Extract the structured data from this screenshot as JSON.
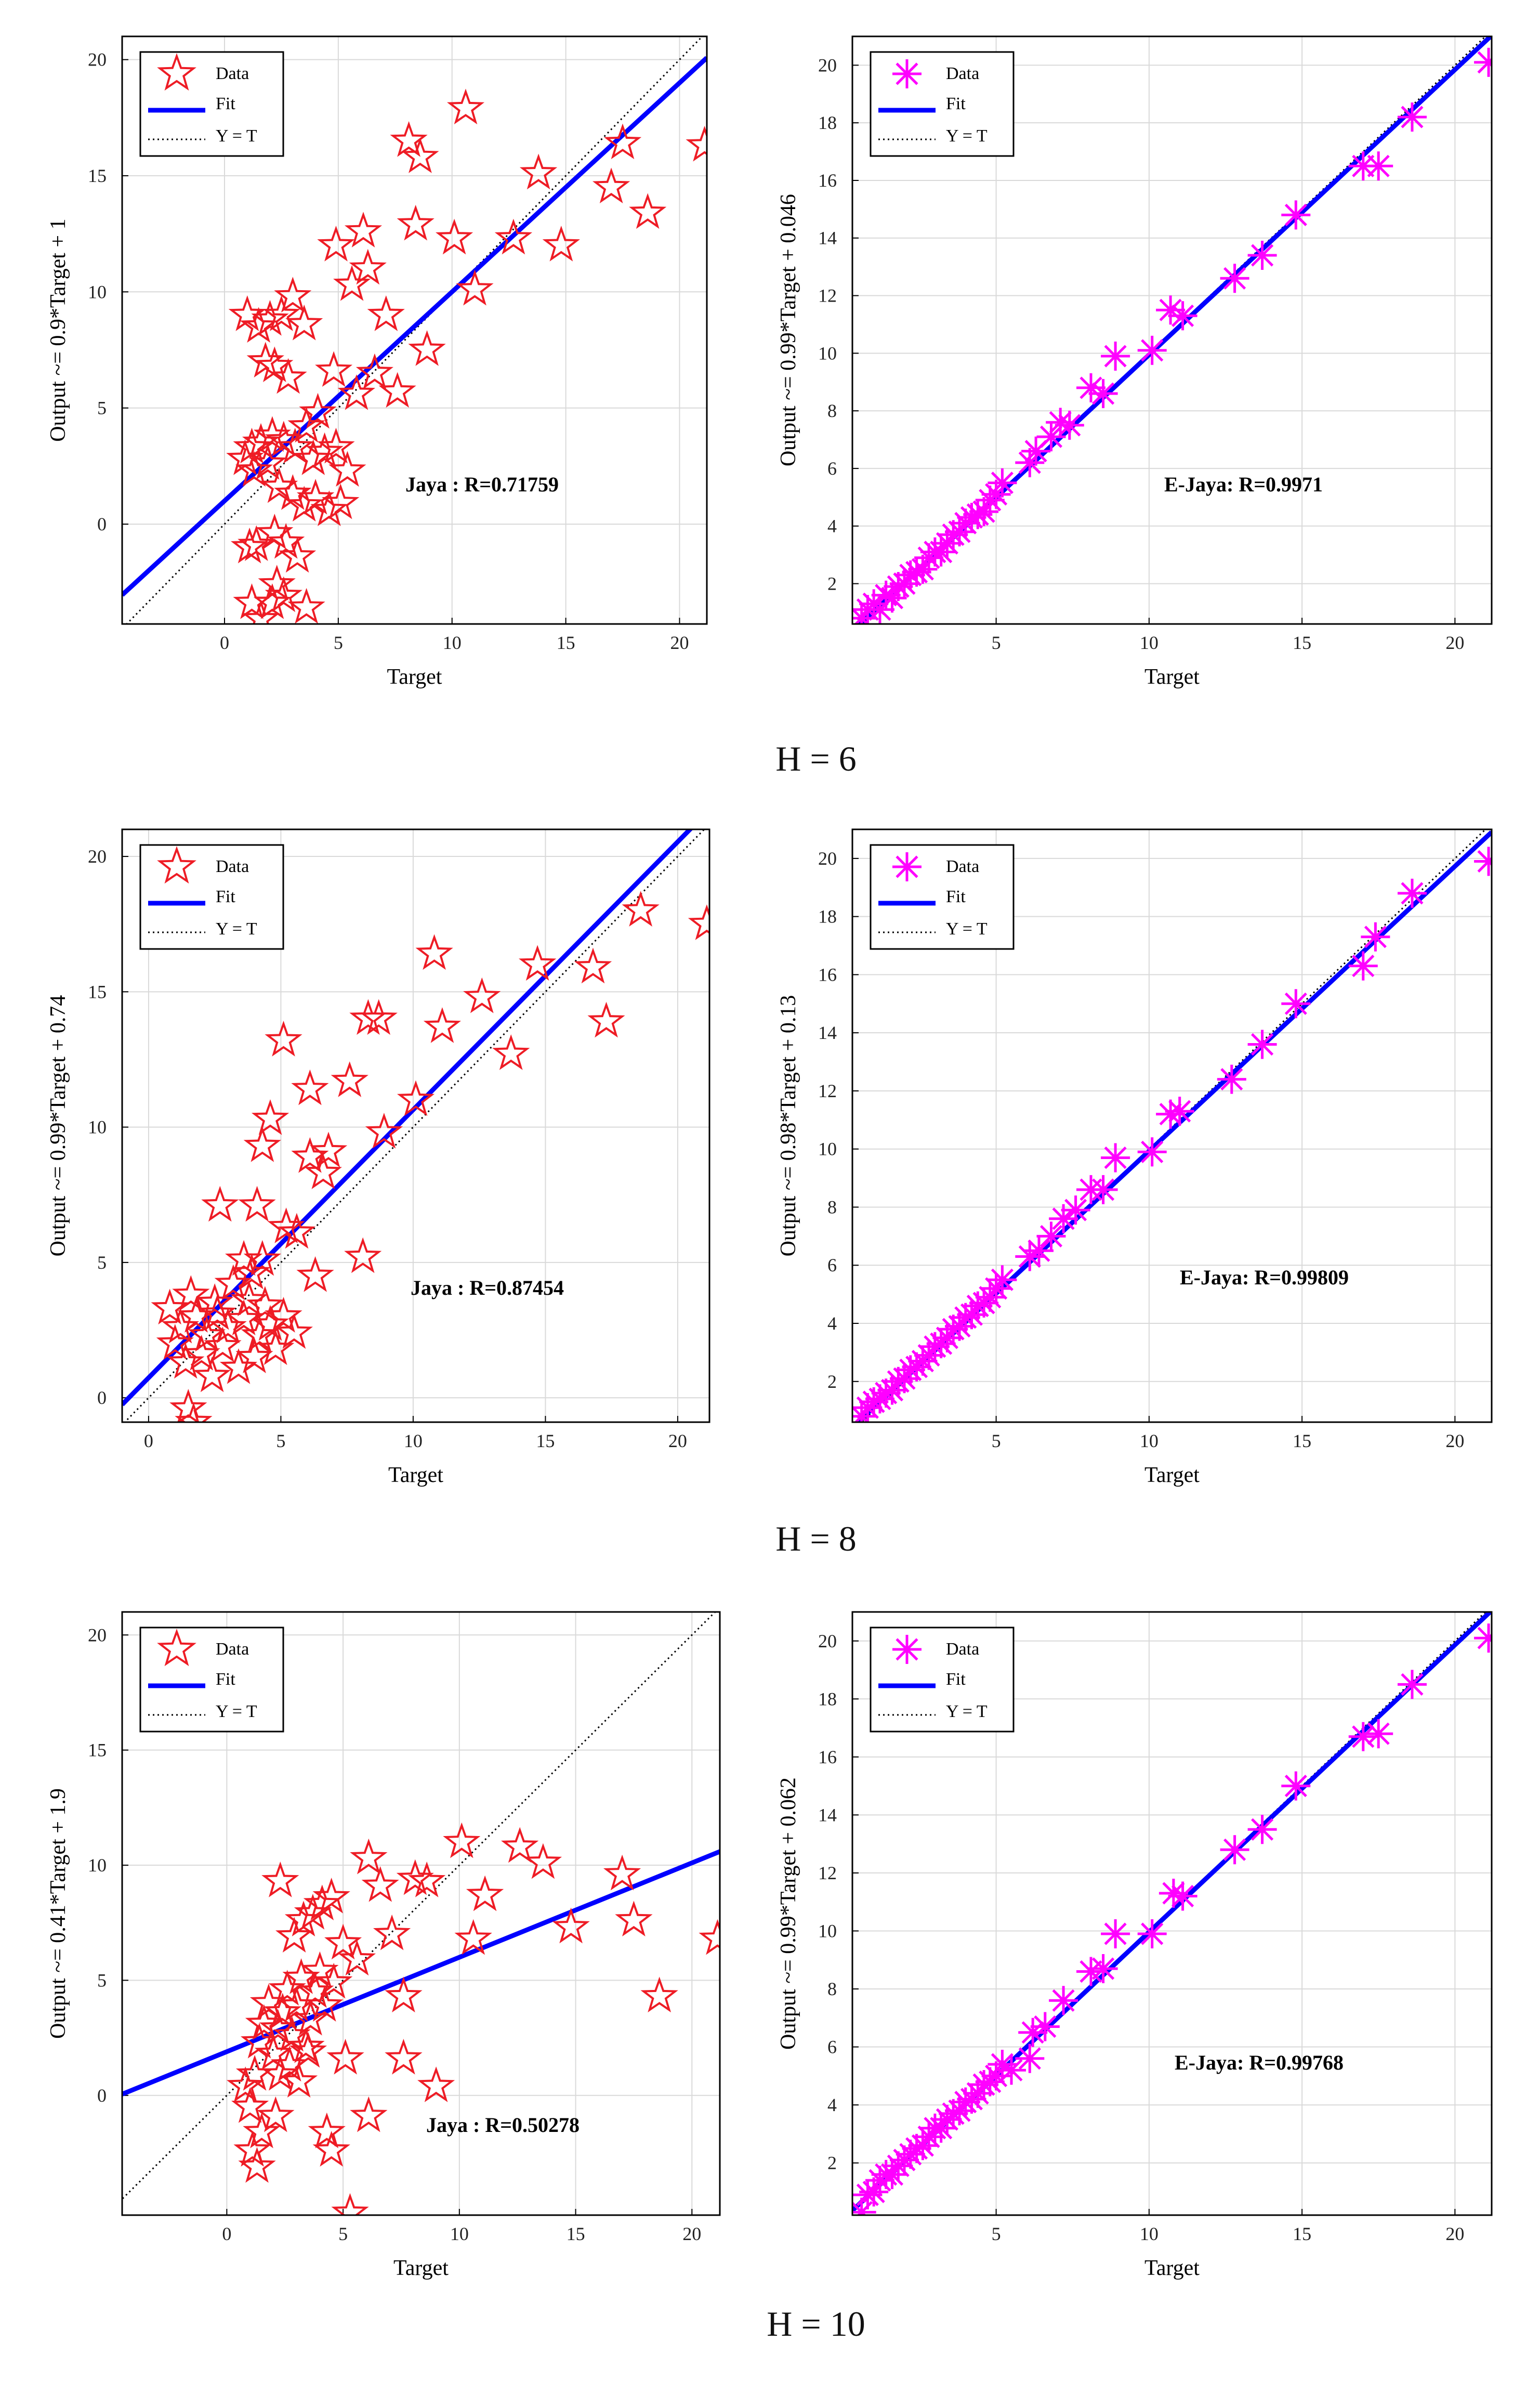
{
  "colors": {
    "jaya": "#ee1c25",
    "ejaya": "#ff00ff",
    "fit": "#0000ff",
    "ref": "#000000",
    "grid": "#d9d9d9"
  },
  "sections": [
    {
      "label": "H = 6"
    },
    {
      "label": "H = 8"
    },
    {
      "label": "H = 10"
    }
  ],
  "legend": {
    "data": "Data",
    "fit": "Fit",
    "ref": "Y = T"
  },
  "chart_data": [
    {
      "type": "scatter",
      "marker": "star",
      "color": "#ee1c25",
      "xlabel": "Target",
      "ylabel": "Output ~= 0.9*Target + 1",
      "annotation": "Jaya : R=0.71759",
      "xlim": [
        -4.5,
        21.2
      ],
      "ylim": [
        -4.3,
        21
      ],
      "xticks": [
        0,
        5,
        10,
        15,
        20
      ],
      "yticks": [
        0,
        5,
        10,
        15,
        20
      ],
      "fit": {
        "slope": 0.9,
        "intercept": 1
      },
      "points": [
        [
          1.0,
          9.0
        ],
        [
          1.5,
          8.5
        ],
        [
          2.0,
          8.8
        ],
        [
          2.5,
          9.0
        ],
        [
          3.0,
          9.8
        ],
        [
          3.5,
          8.6
        ],
        [
          2.2,
          6.8
        ],
        [
          2.8,
          6.3
        ],
        [
          1.8,
          7.0
        ],
        [
          1.2,
          3.3
        ],
        [
          1.6,
          3.5
        ],
        [
          2.1,
          3.8
        ],
        [
          2.6,
          3.6
        ],
        [
          3.1,
          3.3
        ],
        [
          3.6,
          4.2
        ],
        [
          4.1,
          4.8
        ],
        [
          0.9,
          2.8
        ],
        [
          1.3,
          2.3
        ],
        [
          1.9,
          2.6
        ],
        [
          2.4,
          1.6
        ],
        [
          3.0,
          1.3
        ],
        [
          3.5,
          0.8
        ],
        [
          4.0,
          1.1
        ],
        [
          4.6,
          0.6
        ],
        [
          5.1,
          0.9
        ],
        [
          1.1,
          -1.0
        ],
        [
          1.4,
          -0.9
        ],
        [
          2.2,
          -0.4
        ],
        [
          2.7,
          -0.8
        ],
        [
          3.2,
          -1.4
        ],
        [
          1.2,
          -3.4
        ],
        [
          1.6,
          -4.1
        ],
        [
          2.1,
          -3.4
        ],
        [
          2.6,
          -3.1
        ],
        [
          3.6,
          -3.6
        ],
        [
          2.3,
          -2.6
        ],
        [
          3.9,
          2.8
        ],
        [
          4.4,
          3.1
        ],
        [
          4.9,
          3.3
        ],
        [
          5.4,
          2.3
        ],
        [
          4.8,
          6.6
        ],
        [
          5.8,
          5.6
        ],
        [
          4.9,
          12.0
        ],
        [
          6.1,
          12.6
        ],
        [
          5.6,
          10.3
        ],
        [
          6.3,
          11.0
        ],
        [
          7.1,
          9.0
        ],
        [
          6.6,
          6.5
        ],
        [
          7.6,
          5.7
        ],
        [
          8.1,
          16.5
        ],
        [
          8.6,
          15.8
        ],
        [
          8.4,
          12.9
        ],
        [
          10.1,
          12.3
        ],
        [
          10.6,
          17.9
        ],
        [
          11.0,
          10.1
        ],
        [
          8.9,
          7.5
        ],
        [
          12.7,
          12.3
        ],
        [
          13.8,
          15.1
        ],
        [
          14.8,
          12.0
        ],
        [
          17.0,
          14.5
        ],
        [
          17.5,
          16.4
        ],
        [
          18.6,
          13.4
        ],
        [
          21.1,
          16.3
        ]
      ]
    },
    {
      "type": "scatter",
      "marker": "asterisk",
      "color": "#ff00ff",
      "xlabel": "Target",
      "ylabel": "Output ~= 0.99*Target + 0.046",
      "annotation": "E-Jaya: R=0.9971",
      "xlim": [
        0.3,
        21.2
      ],
      "ylim": [
        0.6,
        21
      ],
      "xticks": [
        5,
        10,
        15,
        20
      ],
      "yticks": [
        2,
        4,
        6,
        8,
        10,
        12,
        14,
        16,
        18,
        20
      ],
      "fit": {
        "slope": 0.99,
        "intercept": 0.046
      },
      "points": [
        [
          0.6,
          0.8
        ],
        [
          0.8,
          1.1
        ],
        [
          1.0,
          1.3
        ],
        [
          1.2,
          1.1
        ],
        [
          1.4,
          1.6
        ],
        [
          1.6,
          1.5
        ],
        [
          1.8,
          1.9
        ],
        [
          2.0,
          2.0
        ],
        [
          2.2,
          2.3
        ],
        [
          2.4,
          2.4
        ],
        [
          2.6,
          2.5
        ],
        [
          2.8,
          2.9
        ],
        [
          3.0,
          3.1
        ],
        [
          3.2,
          3.1
        ],
        [
          3.4,
          3.4
        ],
        [
          3.6,
          3.7
        ],
        [
          3.8,
          3.8
        ],
        [
          4.0,
          4.1
        ],
        [
          4.2,
          4.3
        ],
        [
          4.4,
          4.4
        ],
        [
          4.6,
          4.5
        ],
        [
          4.8,
          4.9
        ],
        [
          5.0,
          5.1
        ],
        [
          5.2,
          5.5
        ],
        [
          6.1,
          6.2
        ],
        [
          6.3,
          6.6
        ],
        [
          6.8,
          7.1
        ],
        [
          7.1,
          7.6
        ],
        [
          7.4,
          7.5
        ],
        [
          8.1,
          8.8
        ],
        [
          8.5,
          8.6
        ],
        [
          8.9,
          9.9
        ],
        [
          10.1,
          10.1
        ],
        [
          10.7,
          11.5
        ],
        [
          11.1,
          11.3
        ],
        [
          12.8,
          12.6
        ],
        [
          13.7,
          13.4
        ],
        [
          14.8,
          14.8
        ],
        [
          17.0,
          16.5
        ],
        [
          17.5,
          16.5
        ],
        [
          18.6,
          18.2
        ],
        [
          21.1,
          20.1
        ]
      ]
    },
    {
      "type": "scatter",
      "marker": "star",
      "color": "#ee1c25",
      "xlabel": "Target",
      "ylabel": "Output ~= 0.99*Target + 0.74",
      "annotation": "Jaya : R=0.87454",
      "xlim": [
        -1,
        21.2
      ],
      "ylim": [
        -0.9,
        21
      ],
      "xticks": [
        0,
        5,
        10,
        15,
        20
      ],
      "yticks": [
        0,
        5,
        10,
        15,
        20
      ],
      "fit": {
        "slope": 0.99,
        "intercept": 0.74
      },
      "points": [
        [
          0.8,
          3.3
        ],
        [
          1.0,
          2.0
        ],
        [
          1.2,
          2.6
        ],
        [
          1.4,
          1.3
        ],
        [
          1.6,
          3.8
        ],
        [
          1.8,
          3.0
        ],
        [
          2.0,
          1.6
        ],
        [
          2.2,
          2.3
        ],
        [
          2.4,
          0.8
        ],
        [
          2.6,
          3.1
        ],
        [
          2.8,
          1.9
        ],
        [
          3.0,
          2.6
        ],
        [
          3.2,
          4.2
        ],
        [
          3.4,
          1.1
        ],
        [
          3.6,
          2.9
        ],
        [
          3.8,
          3.6
        ],
        [
          4.0,
          1.5
        ],
        [
          4.2,
          2.3
        ],
        [
          4.4,
          3.4
        ],
        [
          4.6,
          2.7
        ],
        [
          1.5,
          -0.4
        ],
        [
          1.7,
          -0.9
        ],
        [
          2.5,
          3.5
        ],
        [
          3.9,
          4.6
        ],
        [
          4.3,
          5.1
        ],
        [
          5.1,
          3.0
        ],
        [
          5.5,
          2.4
        ],
        [
          4.8,
          1.8
        ],
        [
          2.7,
          7.1
        ],
        [
          3.6,
          5.1
        ],
        [
          4.1,
          7.1
        ],
        [
          4.3,
          9.3
        ],
        [
          4.6,
          10.3
        ],
        [
          5.2,
          6.3
        ],
        [
          5.6,
          6.1
        ],
        [
          5.1,
          13.2
        ],
        [
          6.1,
          11.4
        ],
        [
          6.1,
          8.9
        ],
        [
          6.6,
          8.3
        ],
        [
          6.8,
          9.1
        ],
        [
          6.3,
          4.5
        ],
        [
          7.6,
          11.7
        ],
        [
          8.1,
          5.2
        ],
        [
          8.3,
          14.0
        ],
        [
          8.7,
          14.0
        ],
        [
          8.9,
          9.8
        ],
        [
          10.1,
          11.0
        ],
        [
          10.8,
          16.4
        ],
        [
          11.1,
          13.7
        ],
        [
          12.6,
          14.8
        ],
        [
          13.7,
          12.7
        ],
        [
          14.7,
          16.0
        ],
        [
          16.8,
          15.9
        ],
        [
          17.3,
          13.9
        ],
        [
          18.6,
          18.0
        ],
        [
          21.1,
          17.5
        ]
      ]
    },
    {
      "type": "scatter",
      "marker": "asterisk",
      "color": "#ff00ff",
      "xlabel": "Target",
      "ylabel": "Output ~= 0.98*Target + 0.13",
      "annotation": "E-Jaya: R=0.99809",
      "xlim": [
        0.3,
        21.2
      ],
      "ylim": [
        0.6,
        21
      ],
      "xticks": [
        5,
        10,
        15,
        20
      ],
      "yticks": [
        2,
        4,
        6,
        8,
        10,
        12,
        14,
        16,
        18,
        20
      ],
      "fit": {
        "slope": 0.98,
        "intercept": 0.13
      },
      "points": [
        [
          0.6,
          0.8
        ],
        [
          0.8,
          1.1
        ],
        [
          1.0,
          1.3
        ],
        [
          1.2,
          1.4
        ],
        [
          1.4,
          1.6
        ],
        [
          1.6,
          1.7
        ],
        [
          1.8,
          2.0
        ],
        [
          2.0,
          2.1
        ],
        [
          2.2,
          2.4
        ],
        [
          2.4,
          2.5
        ],
        [
          2.6,
          2.7
        ],
        [
          2.8,
          2.9
        ],
        [
          3.0,
          3.2
        ],
        [
          3.2,
          3.3
        ],
        [
          3.4,
          3.5
        ],
        [
          3.6,
          3.8
        ],
        [
          3.8,
          3.9
        ],
        [
          4.0,
          4.2
        ],
        [
          4.2,
          4.3
        ],
        [
          4.4,
          4.6
        ],
        [
          4.6,
          4.7
        ],
        [
          4.8,
          4.9
        ],
        [
          5.0,
          5.2
        ],
        [
          5.2,
          5.5
        ],
        [
          6.1,
          6.3
        ],
        [
          6.4,
          6.5
        ],
        [
          6.8,
          7.0
        ],
        [
          7.2,
          7.6
        ],
        [
          7.6,
          7.9
        ],
        [
          8.1,
          8.6
        ],
        [
          8.5,
          8.6
        ],
        [
          8.9,
          9.7
        ],
        [
          10.1,
          9.9
        ],
        [
          10.7,
          11.2
        ],
        [
          11.0,
          11.3
        ],
        [
          12.7,
          12.4
        ],
        [
          13.7,
          13.6
        ],
        [
          14.8,
          15.0
        ],
        [
          17.0,
          16.3
        ],
        [
          17.4,
          17.3
        ],
        [
          18.6,
          18.8
        ],
        [
          21.1,
          19.9
        ]
      ]
    },
    {
      "type": "scatter",
      "marker": "star",
      "color": "#ee1c25",
      "xlabel": "Target",
      "ylabel": "Output ~= 0.41*Target + 1.9",
      "annotation": "Jaya : R=0.50278",
      "xlim": [
        -4.5,
        21.2
      ],
      "ylim": [
        -5.2,
        21
      ],
      "xticks": [
        0,
        5,
        10,
        15,
        20
      ],
      "yticks": [
        0,
        5,
        10,
        15,
        20
      ],
      "fit": {
        "slope": 0.41,
        "intercept": 1.9
      },
      "points": [
        [
          0.8,
          0.4
        ],
        [
          1.0,
          -0.5
        ],
        [
          1.2,
          0.9
        ],
        [
          1.4,
          2.3
        ],
        [
          1.6,
          3.1
        ],
        [
          1.8,
          4.0
        ],
        [
          2.0,
          1.8
        ],
        [
          2.2,
          2.9
        ],
        [
          2.4,
          3.6
        ],
        [
          2.6,
          4.6
        ],
        [
          2.8,
          2.6
        ],
        [
          3.0,
          3.9
        ],
        [
          3.2,
          5.1
        ],
        [
          3.4,
          2.1
        ],
        [
          3.6,
          3.3
        ],
        [
          3.8,
          4.5
        ],
        [
          4.0,
          5.4
        ],
        [
          4.2,
          3.9
        ],
        [
          4.6,
          4.9
        ],
        [
          1.1,
          -2.4
        ],
        [
          1.3,
          -3.1
        ],
        [
          1.5,
          -1.6
        ],
        [
          2.1,
          -0.9
        ],
        [
          2.3,
          0.9
        ],
        [
          2.7,
          1.3
        ],
        [
          3.1,
          0.6
        ],
        [
          3.5,
          1.9
        ],
        [
          4.3,
          -1.6
        ],
        [
          4.5,
          -2.4
        ],
        [
          5.1,
          1.6
        ],
        [
          5.3,
          -5.1
        ],
        [
          6.1,
          -0.9
        ],
        [
          2.3,
          9.3
        ],
        [
          2.9,
          6.9
        ],
        [
          3.3,
          7.6
        ],
        [
          3.7,
          7.9
        ],
        [
          4.1,
          8.3
        ],
        [
          4.5,
          8.6
        ],
        [
          5.0,
          6.6
        ],
        [
          5.6,
          5.9
        ],
        [
          6.1,
          10.3
        ],
        [
          6.6,
          9.1
        ],
        [
          7.1,
          7.0
        ],
        [
          7.6,
          4.3
        ],
        [
          7.6,
          1.6
        ],
        [
          8.1,
          9.4
        ],
        [
          8.6,
          9.3
        ],
        [
          9.0,
          0.4
        ],
        [
          10.1,
          11.0
        ],
        [
          10.6,
          6.8
        ],
        [
          11.1,
          8.7
        ],
        [
          12.6,
          10.8
        ],
        [
          13.6,
          10.1
        ],
        [
          14.8,
          7.3
        ],
        [
          17.0,
          9.6
        ],
        [
          17.5,
          7.6
        ],
        [
          18.6,
          4.3
        ],
        [
          21.1,
          6.8
        ]
      ]
    },
    {
      "type": "scatter",
      "marker": "asterisk",
      "color": "#ff00ff",
      "xlabel": "Target",
      "ylabel": "Output ~= 0.99*Target + 0.062",
      "annotation": "E-Jaya: R=0.99768",
      "xlim": [
        0.3,
        21.2
      ],
      "ylim": [
        0.2,
        21
      ],
      "xticks": [
        5,
        10,
        15,
        20
      ],
      "yticks": [
        2,
        4,
        6,
        8,
        10,
        12,
        14,
        16,
        18,
        20
      ],
      "fit": {
        "slope": 0.99,
        "intercept": 0.062
      },
      "points": [
        [
          0.6,
          0.3
        ],
        [
          0.8,
          0.9
        ],
        [
          1.0,
          1.0
        ],
        [
          1.2,
          1.4
        ],
        [
          1.4,
          1.6
        ],
        [
          1.6,
          1.6
        ],
        [
          1.8,
          1.9
        ],
        [
          2.0,
          2.1
        ],
        [
          2.2,
          2.3
        ],
        [
          2.4,
          2.5
        ],
        [
          2.6,
          2.6
        ],
        [
          2.8,
          2.9
        ],
        [
          3.0,
          3.2
        ],
        [
          3.2,
          3.2
        ],
        [
          3.4,
          3.5
        ],
        [
          3.6,
          3.7
        ],
        [
          3.8,
          3.8
        ],
        [
          4.0,
          4.1
        ],
        [
          4.2,
          4.2
        ],
        [
          4.4,
          4.4
        ],
        [
          4.6,
          4.7
        ],
        [
          4.8,
          4.8
        ],
        [
          5.0,
          5.0
        ],
        [
          5.2,
          5.4
        ],
        [
          5.5,
          5.2
        ],
        [
          6.1,
          5.6
        ],
        [
          6.2,
          6.5
        ],
        [
          6.6,
          6.7
        ],
        [
          7.2,
          7.6
        ],
        [
          8.1,
          8.6
        ],
        [
          8.5,
          8.7
        ],
        [
          8.9,
          9.9
        ],
        [
          10.1,
          9.9
        ],
        [
          10.8,
          11.3
        ],
        [
          11.1,
          11.2
        ],
        [
          12.8,
          12.8
        ],
        [
          13.7,
          13.5
        ],
        [
          14.8,
          15.0
        ],
        [
          17.0,
          16.7
        ],
        [
          17.5,
          16.8
        ],
        [
          18.6,
          18.5
        ],
        [
          21.1,
          20.1
        ]
      ]
    }
  ]
}
